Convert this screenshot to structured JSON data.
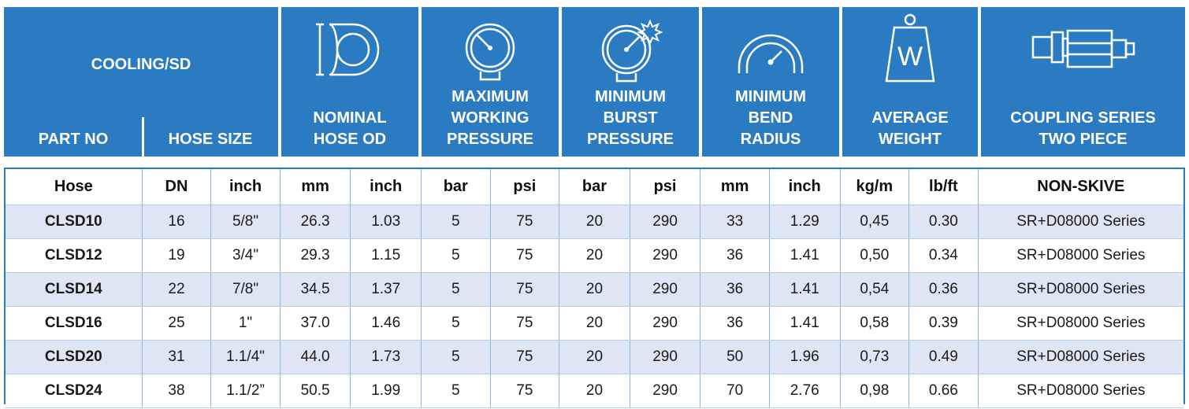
{
  "colors": {
    "header_bg": "#2a7bc1",
    "row_alt": "#dfe6f3",
    "border": "#2a7bc1"
  },
  "header": {
    "title": "COOLING/SD",
    "part_no": "PART NO",
    "hose_size": "HOSE SIZE",
    "nominal_od": [
      "NOMINAL",
      "HOSE OD"
    ],
    "max_working": [
      "MAXIMUM",
      "WORKING",
      "PRESSURE"
    ],
    "min_burst": [
      "MINIMUM",
      "BURST",
      "PRESSURE"
    ],
    "min_bend": [
      "MINIMUM",
      "BEND",
      "RADIUS"
    ],
    "avg_weight": [
      "AVERAGE",
      "WEIGHT"
    ],
    "coupling": [
      "COUPLING SERIES",
      "TWO PIECE"
    ],
    "icons": [
      "hose-od-icon",
      "pressure-gauge-icon",
      "burst-gauge-icon",
      "bend-radius-icon",
      "weight-icon",
      "coupling-icon"
    ],
    "weight_letter": "W"
  },
  "table": {
    "columns": [
      "Hose",
      "DN",
      "inch",
      "mm",
      "inch",
      "bar",
      "psi",
      "bar",
      "psi",
      "mm",
      "inch",
      "kg/m",
      "lb/ft",
      "NON-SKIVE"
    ],
    "rows": [
      [
        "CLSD10",
        "16",
        "5/8\"",
        "26.3",
        "1.03",
        "5",
        "75",
        "20",
        "290",
        "33",
        "1.29",
        "0,45",
        "0.30",
        "SR+D08000 Series"
      ],
      [
        "CLSD12",
        "19",
        "3/4\"",
        "29.3",
        "1.15",
        "5",
        "75",
        "20",
        "290",
        "36",
        "1.41",
        "0,50",
        "0.34",
        "SR+D08000 Series"
      ],
      [
        "CLSD14",
        "22",
        "7/8\"",
        "34.5",
        "1.37",
        "5",
        "75",
        "20",
        "290",
        "36",
        "1.41",
        "0,54",
        "0.36",
        "SR+D08000 Series"
      ],
      [
        "CLSD16",
        "25",
        "1\"",
        "37.0",
        "1.46",
        "5",
        "75",
        "20",
        "290",
        "36",
        "1.41",
        "0,58",
        "0.39",
        "SR+D08000 Series"
      ],
      [
        "CLSD20",
        "31",
        "1.1/4\"",
        "44.0",
        "1.73",
        "5",
        "75",
        "20",
        "290",
        "50",
        "1.96",
        "0,73",
        "0.49",
        "SR+D08000 Series"
      ],
      [
        "CLSD24",
        "38",
        "1.1/2”",
        "50.5",
        "1.99",
        "5",
        "75",
        "20",
        "290",
        "70",
        "2.76",
        "0,98",
        "0.66",
        "SR+D08000 Series"
      ]
    ]
  }
}
